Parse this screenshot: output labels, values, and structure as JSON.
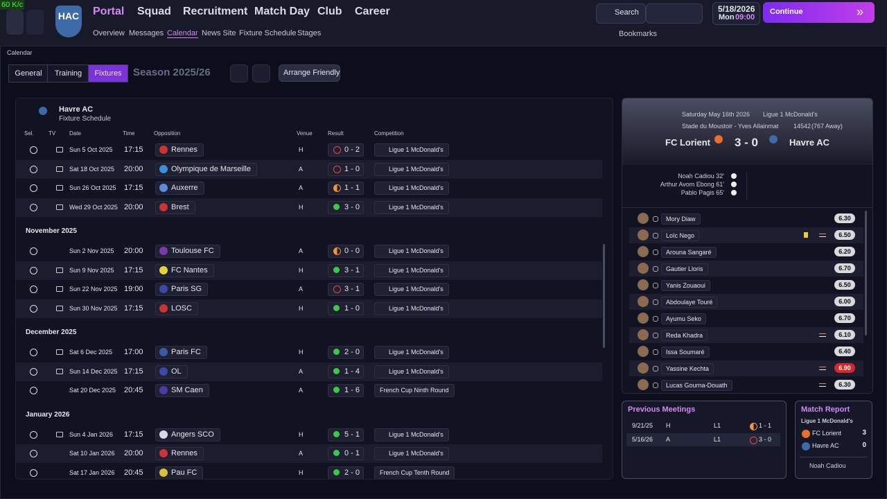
{
  "header": {
    "fps": "60 K/c",
    "nav": [
      "Portal",
      "Squad",
      "Recruitment",
      "Match Day",
      "Club",
      "Career"
    ],
    "subnav": [
      "Overview",
      "Messages",
      "Calendar",
      "News Site",
      "Fixture Schedule",
      "Stages"
    ],
    "search": "Search",
    "date": "5/18/2026",
    "day": "Mon",
    "time": "09:00",
    "continue": "Continue",
    "bookmarks": "Bookmarks"
  },
  "toolbar": {
    "breadcrumb": "Calendar",
    "tabs": [
      "General",
      "Training",
      "Fixtures"
    ],
    "season": "Season 2025/26",
    "arrange": "Arrange Friendly"
  },
  "schedule": {
    "team": "Havre AC",
    "subtitle": "Fixture Schedule",
    "columns": [
      "Sel.",
      "TV",
      "Date",
      "Time",
      "Opposition",
      "Venue",
      "Result",
      "Competition"
    ],
    "groups": [
      {
        "rows": [
          {
            "tv": true,
            "date": "Sun 5 Oct 2025",
            "time": "17:15",
            "opposition": "Rennes",
            "venue": "H",
            "result": "0 - 2",
            "outcome": "loss",
            "competition": "Ligue 1 McDonald's"
          },
          {
            "tv": true,
            "date": "Sat 18 Oct 2025",
            "time": "20:00",
            "opposition": "Olympique de Marseille",
            "venue": "A",
            "result": "1 - 0",
            "outcome": "loss",
            "competition": "Ligue 1 McDonald's"
          },
          {
            "tv": true,
            "date": "Sun 26 Oct 2025",
            "time": "17:15",
            "opposition": "Auxerre",
            "venue": "A",
            "result": "1 - 1",
            "outcome": "draw",
            "competition": "Ligue 1 McDonald's"
          },
          {
            "tv": true,
            "date": "Wed 29 Oct 2025",
            "time": "20:00",
            "opposition": "Brest",
            "venue": "H",
            "result": "3 - 0",
            "outcome": "win",
            "competition": "Ligue 1 McDonald's"
          }
        ]
      },
      {
        "month": "November 2025",
        "rows": [
          {
            "tv": false,
            "date": "Sun 2 Nov 2025",
            "time": "20:00",
            "opposition": "Toulouse FC",
            "venue": "A",
            "result": "0 - 0",
            "outcome": "draw",
            "competition": "Ligue 1 McDonald's"
          },
          {
            "tv": true,
            "date": "Sun 9 Nov 2025",
            "time": "17:15",
            "opposition": "FC Nantes",
            "venue": "H",
            "result": "3 - 1",
            "outcome": "win",
            "competition": "Ligue 1 McDonald's"
          },
          {
            "tv": true,
            "date": "Sun 22 Nov 2025",
            "time": "19:00",
            "opposition": "Paris SG",
            "venue": "A",
            "result": "3 - 1",
            "outcome": "loss",
            "competition": "Ligue 1 McDonald's"
          },
          {
            "tv": true,
            "date": "Sun 30 Nov 2025",
            "time": "17:15",
            "opposition": "LOSC",
            "venue": "H",
            "result": "1 - 0",
            "outcome": "win",
            "competition": "Ligue 1 McDonald's"
          }
        ]
      },
      {
        "month": "December 2025",
        "rows": [
          {
            "tv": true,
            "date": "Sat 6 Dec 2025",
            "time": "17:00",
            "opposition": "Paris FC",
            "venue": "H",
            "result": "2 - 0",
            "outcome": "win",
            "competition": "Ligue 1 McDonald's"
          },
          {
            "tv": true,
            "date": "Sun 14 Dec 2025",
            "time": "17:15",
            "opposition": "OL",
            "venue": "A",
            "result": "1 - 4",
            "outcome": "win",
            "competition": "Ligue 1 McDonald's"
          },
          {
            "tv": false,
            "date": "Sat 20 Dec 2025",
            "time": "20:45",
            "opposition": "SM Caen",
            "venue": "A",
            "result": "1 - 6",
            "outcome": "win",
            "competition": "French Cup Ninth Round"
          }
        ]
      },
      {
        "month": "January 2026",
        "rows": [
          {
            "tv": true,
            "date": "Sun 4 Jan 2026",
            "time": "17:15",
            "opposition": "Angers SCO",
            "venue": "H",
            "result": "5 - 1",
            "outcome": "win",
            "competition": "Ligue 1 McDonald's"
          },
          {
            "tv": false,
            "date": "Sat 10 Jan 2026",
            "time": "20:00",
            "opposition": "Rennes",
            "venue": "A",
            "result": "0 - 1",
            "outcome": "win",
            "competition": "Ligue 1 McDonald's"
          },
          {
            "tv": false,
            "date": "Sat 17 Jan 2026",
            "time": "20:45",
            "opposition": "Pau FC",
            "venue": "H",
            "result": "2 - 0",
            "outcome": "win",
            "competition": "French Cup Tenth Round"
          }
        ]
      }
    ]
  },
  "match": {
    "date": "Saturday May 16th 2026",
    "competition": "Ligue 1 McDonald's",
    "stadium": "Stade du Moustoir - Yves Allainmat",
    "attendance": "14542",
    "away": "(767 Away)",
    "home_team": "FC Lorient",
    "score": "3 - 0",
    "away_team": "Havre AC",
    "scorers": [
      "Noah Cadiou 32'",
      "Arthur Avom Ebong 61'",
      "Pablo Pagis 65'"
    ],
    "players": [
      {
        "name": "Mory Diaw",
        "rating": "6.30"
      },
      {
        "name": "Loïc Nego",
        "rating": "6.50",
        "yellow": true,
        "sub": true
      },
      {
        "name": "Arouna Sangaré",
        "rating": "6.20"
      },
      {
        "name": "Gautier Lloris",
        "rating": "6.70"
      },
      {
        "name": "Yanis Zouaoui",
        "rating": "6.50"
      },
      {
        "name": "Abdoulaye Touré",
        "rating": "6.00"
      },
      {
        "name": "Ayumu Seko",
        "rating": "6.70"
      },
      {
        "name": "Reda Khadra",
        "rating": "6.10",
        "sub": true
      },
      {
        "name": "Issa Soumaré",
        "rating": "6.40"
      },
      {
        "name": "Yassine Kechta",
        "rating": "6.90",
        "sub": true,
        "highlight": true
      },
      {
        "name": "Lucas Gourna-Douath",
        "rating": "6.30",
        "sub": true
      }
    ]
  },
  "previous_meetings": {
    "title": "Previous Meetings",
    "rows": [
      {
        "date": "9/21/25",
        "venue": "H",
        "competition": "L1",
        "result": "1 - 1",
        "outcome": "draw"
      },
      {
        "date": "5/16/26",
        "venue": "A",
        "competition": "L1",
        "result": "3 - 0",
        "outcome": "loss"
      }
    ]
  },
  "match_report": {
    "title": "Match Report",
    "competition": "Ligue 1 McDonald's",
    "teams": [
      {
        "name": "FC Lorient",
        "goals": "3"
      },
      {
        "name": "Havre AC",
        "goals": "0"
      }
    ],
    "player_of_match": "Noah Cadiou"
  }
}
